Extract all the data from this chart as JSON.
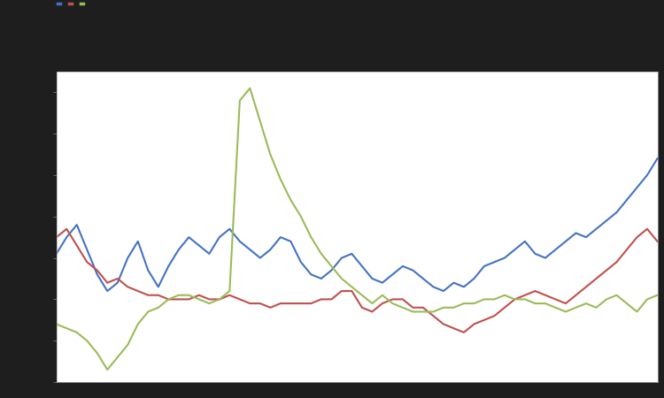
{
  "background_color": "#1e1e1e",
  "plot_bg_color": "#ffffff",
  "line1_color": "#4472c4",
  "line2_color": "#c0504d",
  "line3_color": "#9bbb59",
  "legend_items": [
    "",
    "",
    ""
  ],
  "ylim": [
    -1.0,
    6.5
  ],
  "blue": [
    2.1,
    2.5,
    2.8,
    2.2,
    1.6,
    1.2,
    1.4,
    2.0,
    2.4,
    1.7,
    1.3,
    1.8,
    2.2,
    2.5,
    2.3,
    2.1,
    2.5,
    2.7,
    2.4,
    2.2,
    2.0,
    2.2,
    2.5,
    2.4,
    1.9,
    1.6,
    1.5,
    1.7,
    2.0,
    2.1,
    1.8,
    1.5,
    1.4,
    1.6,
    1.8,
    1.7,
    1.5,
    1.3,
    1.2,
    1.4,
    1.3,
    1.5,
    1.8,
    1.9,
    2.0,
    2.2,
    2.4,
    2.1,
    2.0,
    2.2,
    2.4,
    2.6,
    2.5,
    2.7,
    2.9,
    3.1,
    3.4,
    3.7,
    4.0,
    4.4
  ],
  "red": [
    2.5,
    2.7,
    2.3,
    1.9,
    1.7,
    1.4,
    1.5,
    1.3,
    1.2,
    1.1,
    1.1,
    1.0,
    1.0,
    1.0,
    1.1,
    1.0,
    1.0,
    1.1,
    1.0,
    0.9,
    0.9,
    0.8,
    0.9,
    0.9,
    0.9,
    0.9,
    1.0,
    1.0,
    1.2,
    1.2,
    0.8,
    0.7,
    0.9,
    1.0,
    1.0,
    0.8,
    0.8,
    0.6,
    0.4,
    0.3,
    0.2,
    0.4,
    0.5,
    0.6,
    0.8,
    1.0,
    1.1,
    1.2,
    1.1,
    1.0,
    0.9,
    1.1,
    1.3,
    1.5,
    1.7,
    1.9,
    2.2,
    2.5,
    2.7,
    2.4
  ],
  "green": [
    0.4,
    0.3,
    0.2,
    0.0,
    -0.3,
    -0.7,
    -0.4,
    -0.1,
    0.4,
    0.7,
    0.8,
    1.0,
    1.1,
    1.1,
    1.0,
    0.9,
    1.0,
    1.2,
    5.8,
    6.1,
    5.3,
    4.5,
    3.9,
    3.4,
    3.0,
    2.5,
    2.1,
    1.8,
    1.5,
    1.3,
    1.1,
    0.9,
    1.1,
    0.9,
    0.8,
    0.7,
    0.7,
    0.7,
    0.8,
    0.8,
    0.9,
    0.9,
    1.0,
    1.0,
    1.1,
    1.0,
    1.0,
    0.9,
    0.9,
    0.8,
    0.7,
    0.8,
    0.9,
    0.8,
    1.0,
    1.1,
    0.9,
    0.7,
    1.0,
    1.1
  ]
}
